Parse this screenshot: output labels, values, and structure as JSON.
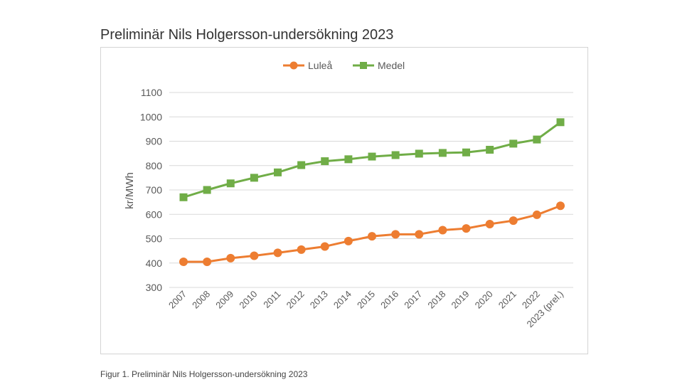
{
  "page": {
    "title": "Preliminär Nils Holgersson-undersökning 2023",
    "caption": "Figur 1. Preliminär Nils Holgersson-undersökning 2023"
  },
  "chart_data": {
    "type": "line",
    "title": "",
    "xlabel": "",
    "ylabel": "kr/MWh",
    "ylim": [
      300,
      1100
    ],
    "yticks": [
      300,
      400,
      500,
      600,
      700,
      800,
      900,
      1000,
      1100
    ],
    "grid": true,
    "legend": "top-center",
    "categories": [
      "2007",
      "2008",
      "2009",
      "2010",
      "2011",
      "2012",
      "2013",
      "2014",
      "2015",
      "2016",
      "2017",
      "2018",
      "2019",
      "2020",
      "2021",
      "2022",
      "2023 (prel.)"
    ],
    "series": [
      {
        "name": "Luleå",
        "color": "#ED7D31",
        "marker": "circle",
        "values": [
          405,
          405,
          420,
          430,
          442,
          455,
          468,
          490,
          510,
          518,
          518,
          535,
          542,
          560,
          574,
          598,
          635
        ]
      },
      {
        "name": "Medel",
        "color": "#70AD47",
        "marker": "square",
        "values": [
          670,
          700,
          727,
          750,
          772,
          802,
          818,
          826,
          837,
          843,
          849,
          852,
          854,
          865,
          890,
          907,
          978
        ]
      }
    ]
  }
}
